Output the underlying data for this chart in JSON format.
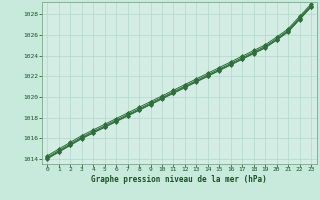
{
  "title": "Graphe pression niveau de la mer (hPa)",
  "bg_color": "#c8eadc",
  "plot_bg_color": "#d4ede4",
  "grid_color": "#b0d8c8",
  "line_color": "#2d6e3a",
  "marker_color": "#2d6e3a",
  "spine_color": "#7aaa88",
  "text_color": "#1a5028",
  "xlim": [
    -0.5,
    23.5
  ],
  "ylim": [
    1013.5,
    1029.2
  ],
  "yticks": [
    1014,
    1016,
    1018,
    1020,
    1022,
    1024,
    1026,
    1028
  ],
  "xticks": [
    0,
    1,
    2,
    3,
    4,
    5,
    6,
    7,
    8,
    9,
    10,
    11,
    12,
    13,
    14,
    15,
    16,
    17,
    18,
    19,
    20,
    21,
    22,
    23
  ],
  "series": [
    [
      1014.0,
      1014.65,
      1015.3,
      1015.95,
      1016.5,
      1017.05,
      1017.6,
      1018.15,
      1018.7,
      1019.25,
      1019.8,
      1020.35,
      1020.9,
      1021.45,
      1022.0,
      1022.55,
      1023.1,
      1023.65,
      1024.2,
      1024.75,
      1025.5,
      1026.3,
      1027.5,
      1028.7
    ],
    [
      1014.15,
      1014.8,
      1015.45,
      1016.1,
      1016.65,
      1017.2,
      1017.75,
      1018.3,
      1018.85,
      1019.4,
      1019.95,
      1020.5,
      1021.05,
      1021.6,
      1022.15,
      1022.7,
      1023.25,
      1023.8,
      1024.35,
      1024.9,
      1025.65,
      1026.45,
      1027.65,
      1028.85
    ],
    [
      1014.3,
      1014.95,
      1015.6,
      1016.25,
      1016.8,
      1017.35,
      1017.9,
      1018.45,
      1019.0,
      1019.55,
      1020.1,
      1020.65,
      1021.2,
      1021.75,
      1022.3,
      1022.85,
      1023.4,
      1023.95,
      1024.5,
      1025.05,
      1025.8,
      1026.6,
      1027.8,
      1029.0
    ],
    [
      1014.05,
      1014.7,
      1015.35,
      1016.0,
      1016.55,
      1017.1,
      1017.65,
      1018.2,
      1018.75,
      1019.3,
      1019.85,
      1020.4,
      1020.95,
      1021.5,
      1022.05,
      1022.6,
      1023.15,
      1023.7,
      1024.25,
      1024.8,
      1025.55,
      1026.35,
      1027.55,
      1028.75
    ]
  ]
}
